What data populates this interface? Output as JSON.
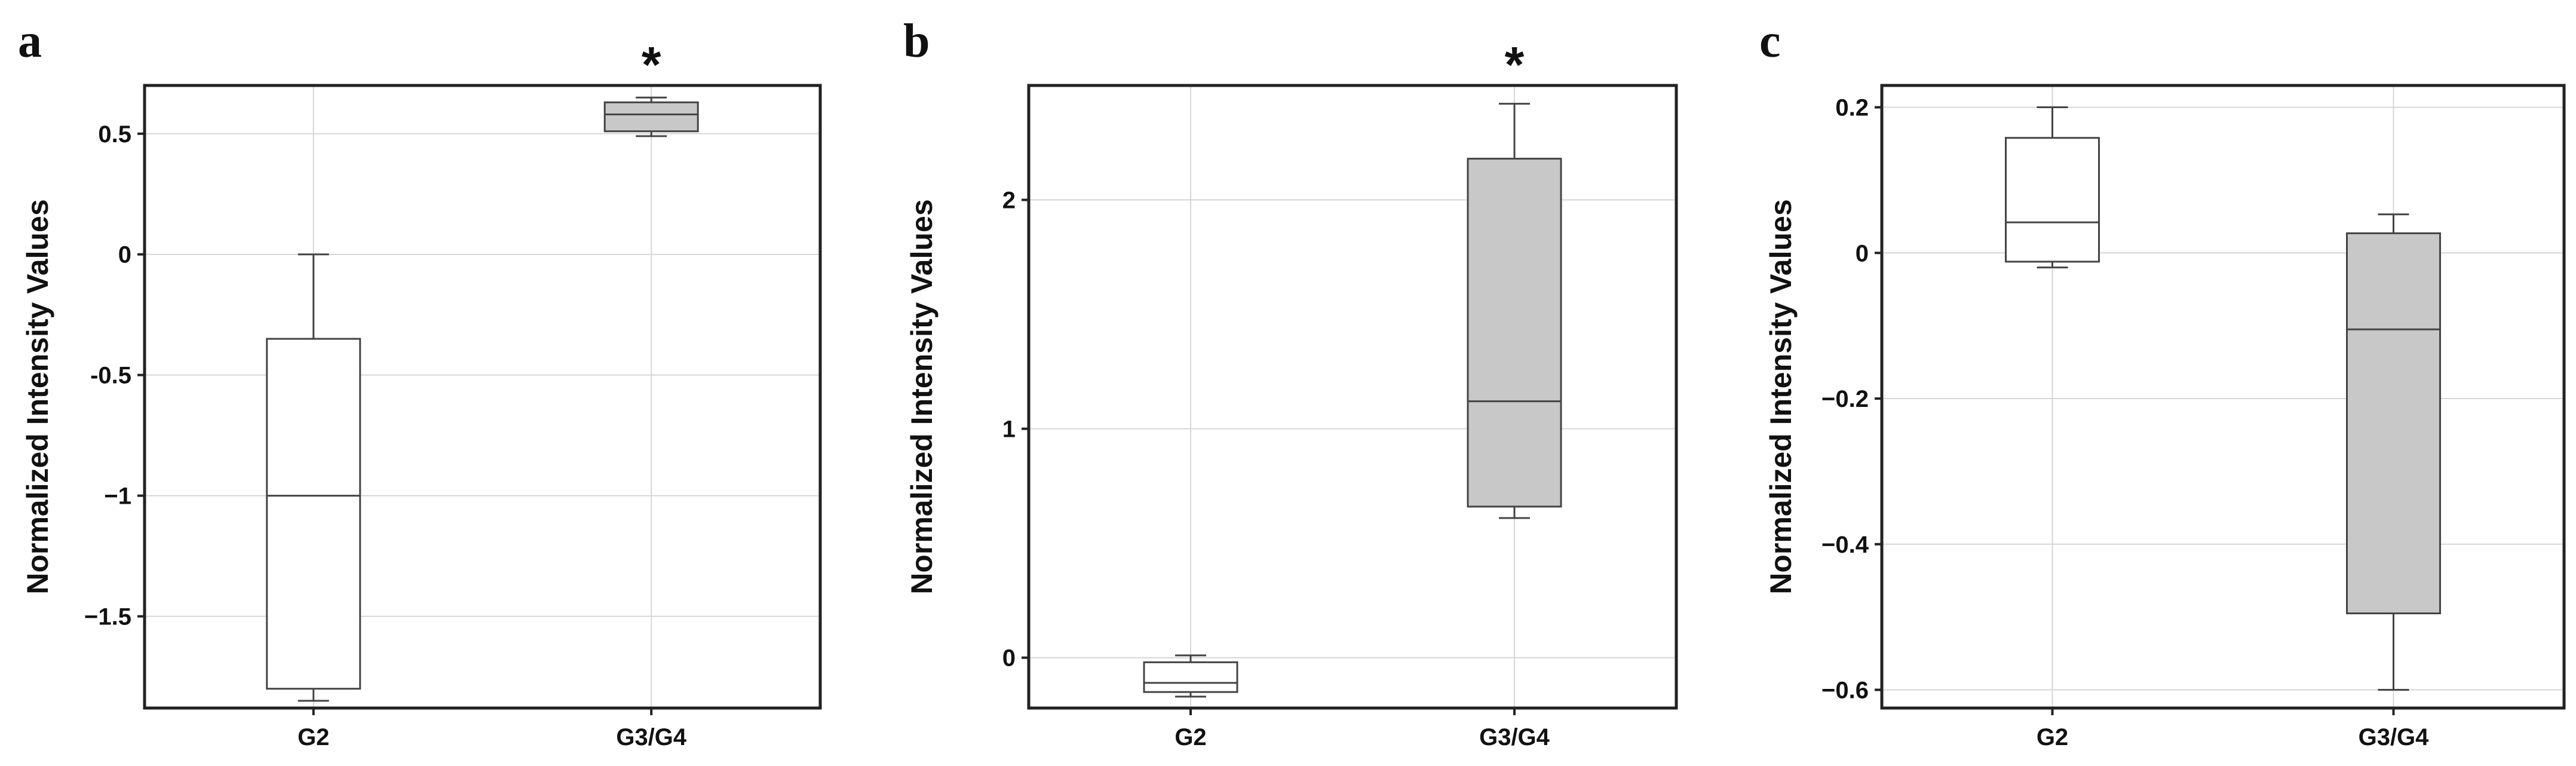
{
  "chart_data": [
    {
      "type": "box",
      "panel_label": "a",
      "ylabel": "Normalized Intensity Values",
      "categories": [
        "G2",
        "G3/G4"
      ],
      "ylim": [
        -1.88,
        0.7
      ],
      "yticks": [
        0.5,
        0,
        -0.5,
        -1,
        -1.5
      ],
      "ytick_labels": [
        "0.5",
        "0",
        "-0.5",
        "−1",
        "−1.5"
      ],
      "grid": true,
      "boxes": [
        {
          "category": "G2",
          "min": -1.85,
          "q1": -1.8,
          "median": -1.0,
          "q3": -0.35,
          "max": 0.0,
          "fill": "#ffffff"
        },
        {
          "category": "G3/G4",
          "min": 0.49,
          "q1": 0.51,
          "median": 0.58,
          "q3": 0.63,
          "max": 0.65,
          "fill": "#c8c8c8"
        }
      ],
      "annotations": [
        {
          "category": "G3/G4",
          "text": "*"
        }
      ]
    },
    {
      "type": "box",
      "panel_label": "b",
      "ylabel": "Normalized Intensity Values",
      "categories": [
        "G2",
        "G3/G4"
      ],
      "ylim": [
        -0.22,
        2.5
      ],
      "yticks": [
        2,
        1,
        0
      ],
      "ytick_labels": [
        "2",
        "1",
        "0"
      ],
      "grid": true,
      "boxes": [
        {
          "category": "G2",
          "min": -0.17,
          "q1": -0.15,
          "median": -0.11,
          "q3": -0.02,
          "max": 0.01,
          "fill": "#ffffff"
        },
        {
          "category": "G3/G4",
          "min": 0.61,
          "q1": 0.66,
          "median": 1.12,
          "q3": 2.18,
          "max": 2.42,
          "fill": "#c8c8c8"
        }
      ],
      "annotations": [
        {
          "category": "G3/G4",
          "text": "*"
        }
      ]
    },
    {
      "type": "box",
      "panel_label": "c",
      "ylabel": "Normalized Intensity Values",
      "categories": [
        "G2",
        "G3/G4"
      ],
      "ylim": [
        -0.625,
        0.23
      ],
      "yticks": [
        0.2,
        0,
        -0.2,
        -0.4,
        -0.6
      ],
      "ytick_labels": [
        "0.2",
        "0",
        "−0.2",
        "−0.4",
        "−0.6"
      ],
      "grid": true,
      "boxes": [
        {
          "category": "G2",
          "min": -0.02,
          "q1": -0.012,
          "median": 0.042,
          "q3": 0.158,
          "max": 0.2,
          "fill": "#ffffff"
        },
        {
          "category": "G3/G4",
          "min": -0.6,
          "q1": -0.495,
          "median": -0.105,
          "q3": 0.027,
          "max": 0.053,
          "fill": "#c8c8c8"
        }
      ],
      "annotations": []
    }
  ]
}
